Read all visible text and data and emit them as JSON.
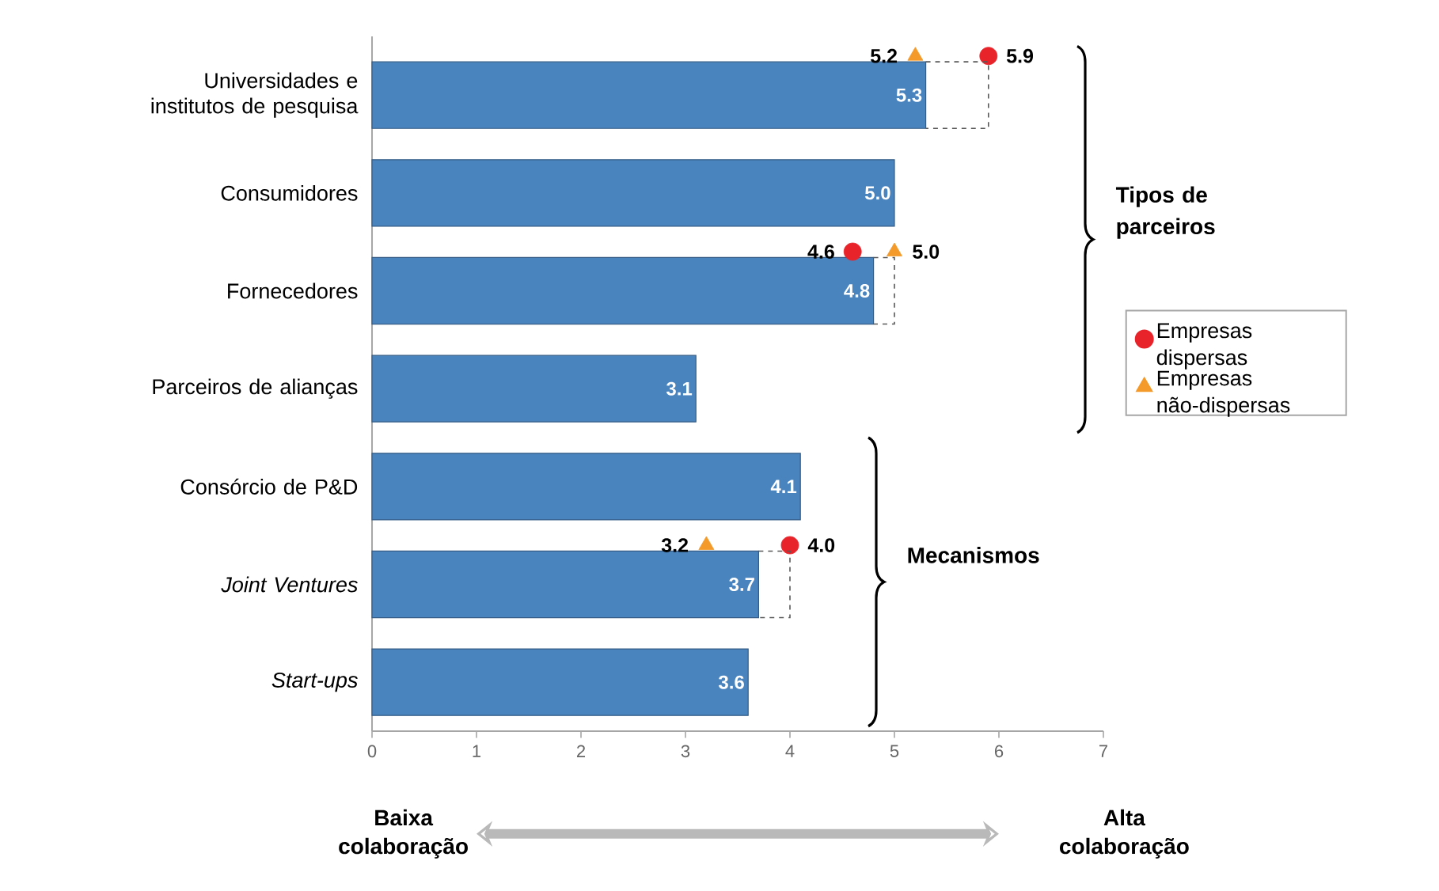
{
  "chart_data": {
    "type": "bar",
    "orientation": "horizontal",
    "categories": [
      "Universidades e institutos de pesquisa",
      "Consumidores",
      "Fornecedores",
      "Parceiros de alianças",
      "Consórcio de P&D",
      "*Joint Ventures*",
      "*Start-ups*"
    ],
    "values": [
      5.3,
      5.0,
      4.8,
      3.1,
      4.1,
      3.7,
      3.6
    ],
    "color": "#4a84bf",
    "value_labels": [
      "5.3",
      "5.0",
      "4.8",
      "3.1",
      "4.1",
      "3.7",
      "3.6"
    ],
    "series": [
      {
        "name": "Empresas dispersas",
        "type": "scatter",
        "marker": "circle",
        "color": "#e8232a",
        "values": [
          5.9,
          null,
          4.6,
          null,
          null,
          4.0,
          null
        ],
        "value_labels": [
          "5.9",
          null,
          "4.6",
          null,
          null,
          "4.0",
          null
        ]
      },
      {
        "name": "Empresas não-dispersas",
        "type": "scatter",
        "marker": "triangle",
        "color": "#f39a2b",
        "values": [
          5.2,
          null,
          5.0,
          null,
          null,
          3.2,
          null
        ],
        "value_labels": [
          "5.2",
          null,
          "5.0",
          null,
          null,
          "3.2",
          null
        ]
      }
    ],
    "xlim": [
      0,
      7
    ],
    "xticks": [
      0,
      1,
      2,
      3,
      4,
      5,
      6,
      7
    ],
    "legend": "right",
    "annotations": [
      "Tipos de parceiros",
      "Mecanismos",
      "Baixa colaboração",
      "Alta colaboração"
    ]
  }
}
